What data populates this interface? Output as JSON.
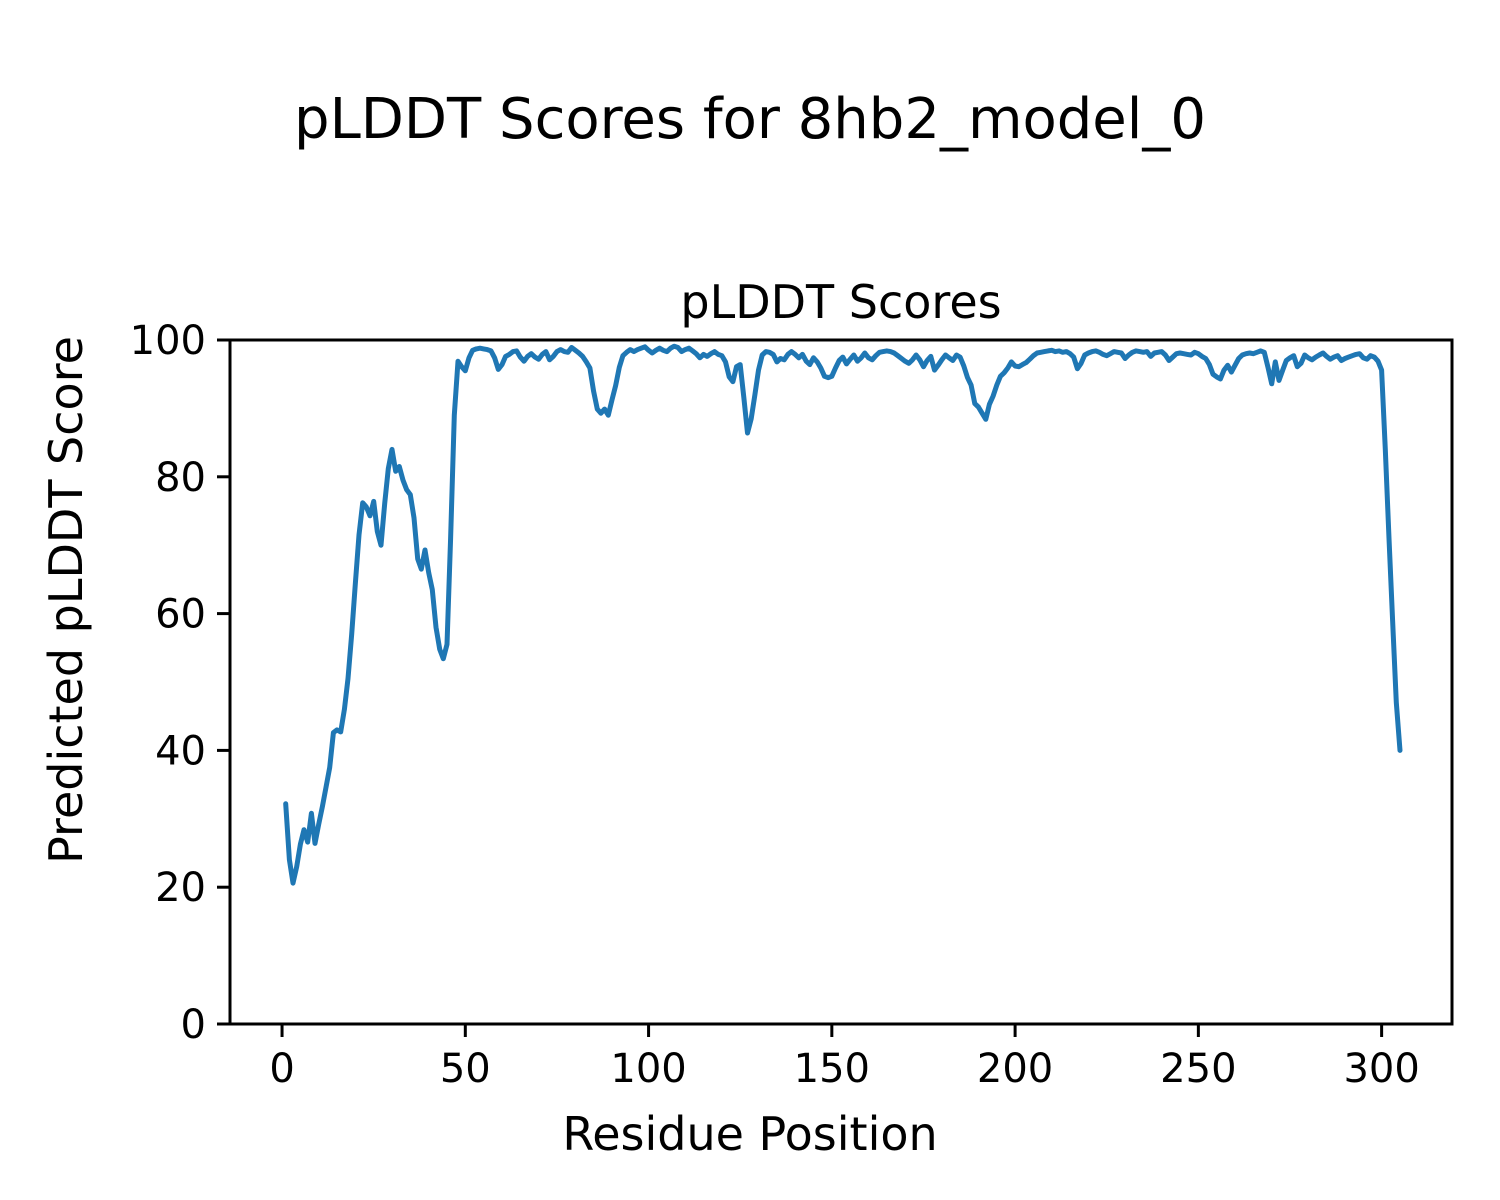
{
  "chart_data": {
    "type": "line",
    "suptitle": "pLDDT Scores for 8hb2_model_0",
    "title": "pLDDT Scores",
    "xlabel": "Residue Position",
    "ylabel": "Predicted pLDDT Score",
    "xlim": [
      -14.2,
      319.2
    ],
    "ylim": [
      0,
      100
    ],
    "xticks": [
      0,
      50,
      100,
      150,
      200,
      250,
      300
    ],
    "yticks": [
      0,
      20,
      40,
      60,
      80,
      100
    ],
    "grid": false,
    "legend": null,
    "line_color": "#1f77b4",
    "axis_color": "#000000",
    "series": [
      {
        "name": "pLDDT",
        "x_start": 1,
        "x_step": 1,
        "values": [
          32.2,
          24.0,
          20.6,
          23.0,
          26.3,
          28.4,
          26.6,
          30.8,
          26.4,
          29.2,
          31.8,
          34.6,
          37.5,
          42.6,
          43.0,
          42.7,
          46.0,
          50.5,
          57.0,
          64.5,
          71.5,
          76.2,
          75.6,
          74.3,
          76.4,
          72.0,
          70.0,
          76.1,
          81.2,
          84.0,
          80.8,
          81.5,
          79.5,
          78.1,
          77.4,
          74.0,
          68.0,
          66.5,
          69.3,
          66.0,
          63.5,
          58.0,
          54.8,
          53.4,
          55.5,
          71.0,
          89.0,
          96.9,
          96.1,
          95.5,
          97.4,
          98.5,
          98.7,
          98.8,
          98.7,
          98.6,
          98.4,
          97.4,
          95.7,
          96.4,
          97.6,
          97.9,
          98.3,
          98.4,
          97.5,
          96.9,
          97.6,
          98.0,
          97.5,
          97.2,
          97.9,
          98.3,
          97.1,
          97.6,
          98.3,
          98.6,
          98.3,
          98.2,
          98.9,
          98.5,
          98.1,
          97.6,
          96.8,
          95.9,
          92.5,
          89.9,
          89.3,
          89.9,
          89.0,
          91.2,
          93.3,
          96.0,
          97.7,
          98.2,
          98.6,
          98.3,
          98.6,
          98.8,
          99.0,
          98.5,
          98.1,
          98.5,
          98.8,
          98.5,
          98.3,
          98.8,
          99.1,
          98.9,
          98.3,
          98.6,
          98.8,
          98.4,
          98.0,
          97.4,
          97.9,
          97.6,
          98.0,
          98.3,
          97.9,
          97.7,
          96.8,
          94.6,
          93.9,
          96.1,
          96.4,
          91.5,
          86.4,
          88.5,
          92.0,
          95.6,
          97.8,
          98.3,
          98.2,
          97.9,
          96.8,
          97.3,
          97.1,
          97.9,
          98.3,
          97.9,
          97.4,
          97.9,
          96.9,
          96.4,
          97.4,
          96.8,
          95.9,
          94.7,
          94.5,
          94.7,
          95.9,
          97.0,
          97.5,
          96.5,
          97.2,
          97.8,
          96.9,
          97.4,
          98.1,
          97.4,
          97.1,
          97.7,
          98.2,
          98.3,
          98.4,
          98.3,
          98.1,
          97.7,
          97.3,
          96.9,
          96.6,
          97.1,
          97.8,
          97.1,
          96.1,
          97.0,
          97.6,
          95.6,
          96.3,
          97.1,
          97.8,
          97.4,
          97.0,
          97.8,
          97.5,
          96.2,
          94.5,
          93.4,
          90.7,
          90.2,
          89.3,
          88.4,
          90.6,
          91.8,
          93.4,
          94.7,
          95.2,
          95.9,
          96.8,
          96.2,
          96.1,
          96.4,
          96.7,
          97.2,
          97.7,
          98.1,
          98.2,
          98.3,
          98.4,
          98.5,
          98.3,
          98.4,
          98.2,
          98.3,
          98.0,
          97.5,
          95.8,
          96.6,
          97.8,
          98.1,
          98.3,
          98.4,
          98.2,
          97.9,
          97.7,
          98.0,
          98.3,
          98.2,
          98.1,
          97.3,
          97.8,
          98.2,
          98.4,
          98.3,
          98.2,
          98.3,
          97.6,
          98.1,
          98.2,
          98.3,
          97.8,
          97.0,
          97.5,
          98.0,
          98.1,
          98.0,
          97.9,
          97.8,
          98.2,
          98.0,
          97.6,
          97.3,
          96.4,
          95.0,
          94.6,
          94.3,
          95.6,
          96.3,
          95.3,
          96.3,
          97.3,
          97.8,
          98.0,
          98.1,
          98.0,
          98.2,
          98.4,
          98.2,
          96.0,
          93.6,
          96.8,
          94.1,
          95.6,
          97.0,
          97.4,
          97.7,
          96.1,
          96.6,
          97.8,
          97.4,
          97.1,
          97.5,
          97.8,
          98.1,
          97.6,
          97.2,
          97.5,
          97.7,
          97.0,
          97.3,
          97.5,
          97.7,
          97.9,
          98.0,
          97.4,
          97.2,
          97.7,
          97.5,
          96.9,
          95.6,
          84.0,
          71.0,
          59.0,
          47.0,
          40.0
        ]
      }
    ]
  }
}
